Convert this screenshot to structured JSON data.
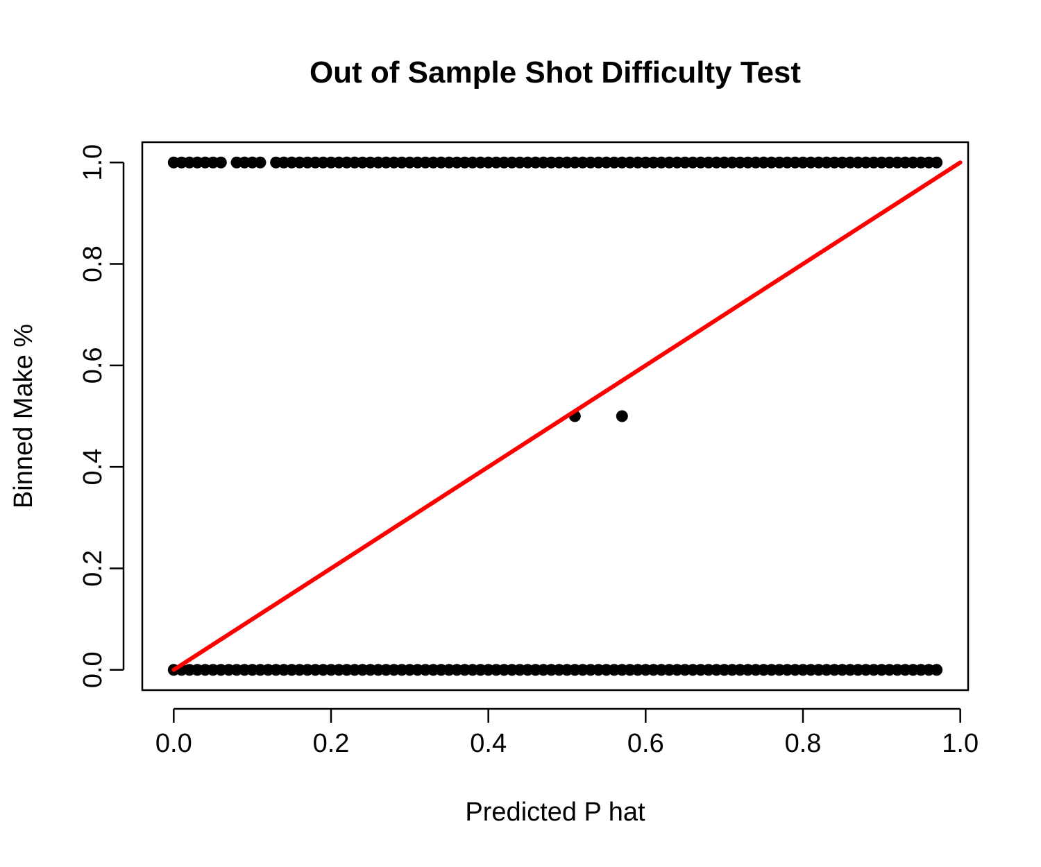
{
  "chart_data": {
    "type": "scatter",
    "title": "Out of Sample Shot Difficulty Test",
    "xlabel": "Predicted P hat",
    "ylabel": "Binned Make %",
    "xlim": [
      -0.04,
      1.01
    ],
    "ylim": [
      -0.04,
      1.04
    ],
    "grid": false,
    "x_ticks": [
      0.0,
      0.2,
      0.4,
      0.6,
      0.8,
      1.0
    ],
    "x_tick_labels": [
      "0.0",
      "0.2",
      "0.4",
      "0.6",
      "0.8",
      "1.0"
    ],
    "y_ticks": [
      0.0,
      0.2,
      0.4,
      0.6,
      0.8,
      1.0
    ],
    "y_tick_labels": [
      "0.0",
      "0.2",
      "0.4",
      "0.6",
      "0.8",
      "1.0"
    ],
    "point_color": "#000000",
    "series": [
      {
        "name": "Binned Make % = 1",
        "x": [
          0.0,
          0.01,
          0.02,
          0.03,
          0.04,
          0.05,
          0.06,
          0.08,
          0.09,
          0.1,
          0.11,
          0.13,
          0.14,
          0.15,
          0.16,
          0.17,
          0.18,
          0.19,
          0.2,
          0.21,
          0.22,
          0.23,
          0.24,
          0.25,
          0.26,
          0.27,
          0.28,
          0.29,
          0.3,
          0.31,
          0.32,
          0.33,
          0.34,
          0.35,
          0.36,
          0.37,
          0.38,
          0.39,
          0.4,
          0.41,
          0.42,
          0.43,
          0.44,
          0.45,
          0.46,
          0.47,
          0.48,
          0.49,
          0.5,
          0.51,
          0.52,
          0.53,
          0.54,
          0.55,
          0.56,
          0.57,
          0.58,
          0.59,
          0.6,
          0.61,
          0.62,
          0.63,
          0.64,
          0.65,
          0.66,
          0.67,
          0.68,
          0.69,
          0.7,
          0.71,
          0.72,
          0.73,
          0.74,
          0.75,
          0.76,
          0.77,
          0.78,
          0.79,
          0.8,
          0.81,
          0.82,
          0.83,
          0.84,
          0.85,
          0.86,
          0.87,
          0.88,
          0.89,
          0.9,
          0.91,
          0.92,
          0.93,
          0.94,
          0.95,
          0.96,
          0.97
        ],
        "y_value": 1.0
      },
      {
        "name": "Binned Make % = 0",
        "x": [
          0.0,
          0.01,
          0.02,
          0.03,
          0.04,
          0.05,
          0.06,
          0.07,
          0.08,
          0.09,
          0.1,
          0.11,
          0.12,
          0.13,
          0.14,
          0.15,
          0.16,
          0.17,
          0.18,
          0.19,
          0.2,
          0.21,
          0.22,
          0.23,
          0.24,
          0.25,
          0.26,
          0.27,
          0.28,
          0.29,
          0.3,
          0.31,
          0.32,
          0.33,
          0.34,
          0.35,
          0.36,
          0.37,
          0.38,
          0.39,
          0.4,
          0.41,
          0.42,
          0.43,
          0.44,
          0.45,
          0.46,
          0.47,
          0.48,
          0.49,
          0.5,
          0.51,
          0.52,
          0.53,
          0.54,
          0.55,
          0.56,
          0.57,
          0.58,
          0.59,
          0.6,
          0.61,
          0.62,
          0.63,
          0.64,
          0.65,
          0.66,
          0.67,
          0.68,
          0.69,
          0.7,
          0.71,
          0.72,
          0.73,
          0.74,
          0.75,
          0.76,
          0.77,
          0.78,
          0.79,
          0.8,
          0.81,
          0.82,
          0.83,
          0.84,
          0.85,
          0.86,
          0.87,
          0.88,
          0.89,
          0.9,
          0.91,
          0.92,
          0.93,
          0.94,
          0.95,
          0.96,
          0.97
        ],
        "y_value": 0.0
      },
      {
        "name": "Binned Make % = 0.5",
        "x": [
          0.51,
          0.57
        ],
        "y_value": 0.5
      }
    ],
    "reference_line": {
      "name": "y = x",
      "color": "#ff0000",
      "x": [
        0.0,
        1.0
      ],
      "y": [
        0.0,
        1.0
      ]
    }
  }
}
